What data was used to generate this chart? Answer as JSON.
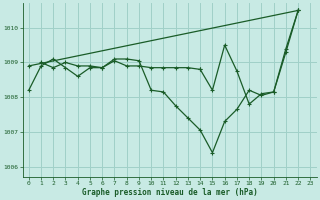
{
  "background_color": "#c8eae4",
  "grid_color": "#a0d0c8",
  "line_color": "#1a5c28",
  "text_color": "#1a5c28",
  "xlabel": "Graphe pression niveau de la mer (hPa)",
  "xlim": [
    -0.5,
    23.5
  ],
  "ylim": [
    1005.7,
    1010.7
  ],
  "yticks": [
    1006,
    1007,
    1008,
    1009,
    1010
  ],
  "xticks": [
    0,
    1,
    2,
    3,
    4,
    5,
    6,
    7,
    8,
    9,
    10,
    11,
    12,
    13,
    14,
    15,
    16,
    17,
    18,
    19,
    20,
    21,
    22,
    23
  ],
  "series": [
    {
      "x": [
        0,
        1,
        2,
        3,
        4,
        5,
        6,
        7,
        8,
        9,
        10,
        11,
        12,
        13,
        14,
        15,
        16,
        17,
        18,
        19,
        20,
        21,
        22
      ],
      "y": [
        1008.2,
        1008.9,
        1009.1,
        1008.85,
        1008.6,
        1008.85,
        1008.85,
        1009.1,
        1009.1,
        1009.05,
        1008.2,
        1008.15,
        1007.75,
        1007.4,
        1007.05,
        1006.4,
        1007.3,
        1007.65,
        1008.2,
        1008.05,
        1008.15,
        1009.3,
        1010.5
      ]
    },
    {
      "x": [
        1,
        2,
        3,
        4,
        5,
        6,
        7,
        8,
        9,
        10,
        11,
        12,
        13,
        14
      ],
      "y": [
        1009.0,
        1008.85,
        1009.0,
        1008.9,
        1008.9,
        1008.85,
        1009.05,
        1008.9,
        1008.9,
        1008.85,
        1008.85,
        1008.85,
        1008.85,
        1008.8
      ]
    },
    {
      "x": [
        0,
        22
      ],
      "y": [
        1008.9,
        1010.5
      ]
    },
    {
      "x": [
        14,
        15,
        16,
        17,
        18,
        19,
        20,
        21,
        22
      ],
      "y": [
        1008.8,
        1008.2,
        1009.5,
        1008.75,
        1007.8,
        1008.1,
        1008.15,
        1009.4,
        1010.5
      ]
    }
  ]
}
